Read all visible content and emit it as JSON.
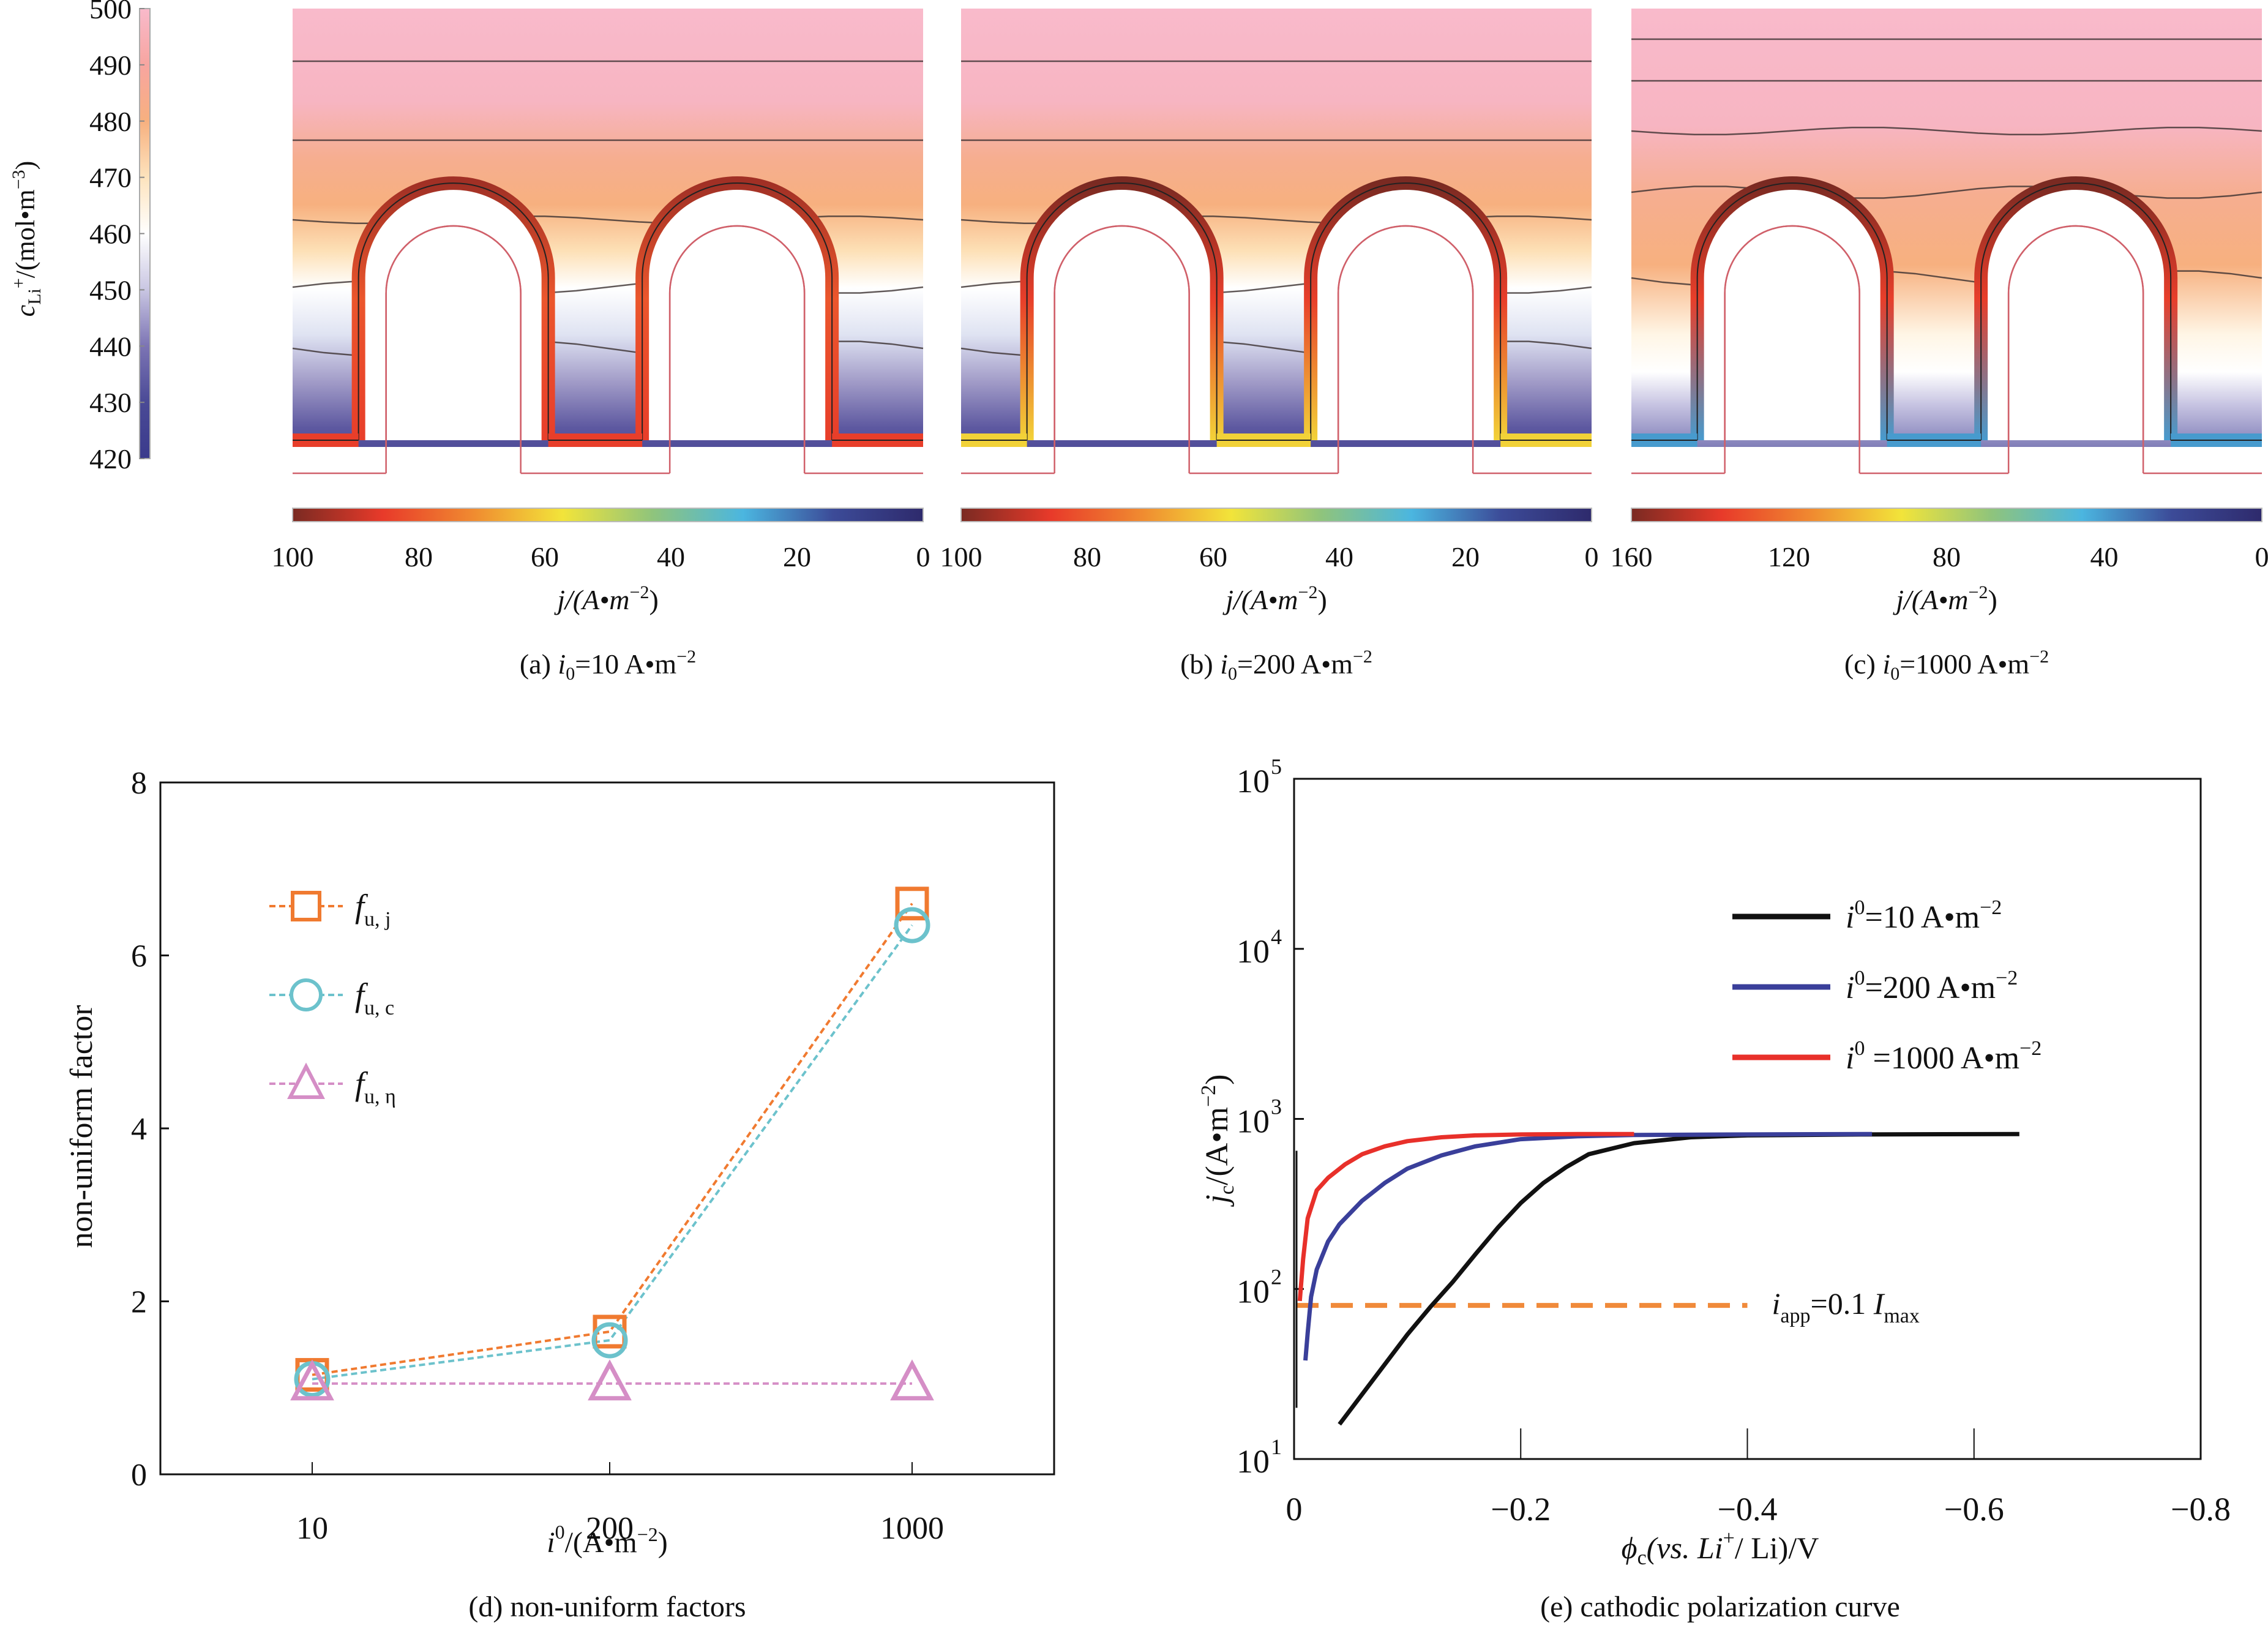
{
  "concentration_colorbar": {
    "label_main": "c",
    "label_sub": "Li",
    "label_sup": "+",
    "label_unit": "/(mol•m",
    "label_unit_exp": "−3",
    "label_unit_close": ")",
    "ticks": [
      "420",
      "430",
      "440",
      "450",
      "460",
      "470",
      "480",
      "490",
      "500"
    ],
    "range": [
      420,
      500
    ],
    "colors": [
      "#3a3a8c",
      "#4a4a96",
      "#7c74b4",
      "#c9c6e2",
      "#ffffff",
      "#fde3bd",
      "#f7b07f",
      "#f7a5a0",
      "#f9bacb"
    ]
  },
  "current_colormap": [
    "#7a2a22",
    "#e83a2a",
    "#f08a30",
    "#f2e43a",
    "#8fc47c",
    "#4bb6e0",
    "#3c4b98",
    "#2e2a6c"
  ],
  "contour_panels": [
    {
      "id": "a",
      "caption_prefix": "(a)",
      "caption_var": "i",
      "caption_sub": "0",
      "caption_value": "=10 A•m",
      "caption_exp": "−2",
      "colorbar_ticks": [
        "100",
        "80",
        "60",
        "40",
        "20",
        "0"
      ],
      "colorbar_range": [
        100,
        0
      ],
      "colorbar_label": "j/(A•m",
      "colorbar_label_exp": "−2",
      "colorbar_label_close": ")",
      "arch_top_current": 95,
      "trench_bottom_current": 85
    },
    {
      "id": "b",
      "caption_prefix": "(b)",
      "caption_var": "i",
      "caption_sub": "0",
      "caption_value": "=200 A•m",
      "caption_exp": "−2",
      "colorbar_ticks": [
        "100",
        "80",
        "60",
        "40",
        "20",
        "0"
      ],
      "colorbar_range": [
        100,
        0
      ],
      "colorbar_label": "j/(A•m",
      "colorbar_label_exp": "−2",
      "colorbar_label_close": ")",
      "arch_top_current": 100,
      "trench_bottom_current": 60
    },
    {
      "id": "c",
      "caption_prefix": "(c)",
      "caption_var": "i",
      "caption_sub": "0",
      "caption_value": "=1000 A•m",
      "caption_exp": "−2",
      "colorbar_ticks": [
        "160",
        "120",
        "80",
        "40",
        "0"
      ],
      "colorbar_range": [
        160,
        0
      ],
      "colorbar_label": "j/(A•m",
      "colorbar_label_exp": "−2",
      "colorbar_label_close": ")",
      "arch_top_current": 160,
      "trench_bottom_current": 40
    }
  ],
  "chart_data": [
    {
      "type": "line",
      "id": "d",
      "title": "(d) non-uniform factors",
      "xlabel": "i⁰/(A•m⁻²)",
      "xlabel_var": "i",
      "xlabel_sup": "0",
      "xlabel_unit": "/(A•m",
      "xlabel_exp": "−2",
      "xlabel_close": ")",
      "ylabel": "non-uniform factor",
      "categories": [
        "10",
        "200",
        "1000"
      ],
      "ylim": [
        0,
        8
      ],
      "yticks": [
        "0",
        "2",
        "4",
        "6",
        "8"
      ],
      "legend_position": "upper-left",
      "series": [
        {
          "name": "f_u,j",
          "label_f": "f",
          "label_sub": "u, j",
          "marker": "square",
          "color": "#f07a30",
          "values": [
            1.15,
            1.65,
            6.6
          ]
        },
        {
          "name": "f_u,c",
          "label_f": "f",
          "label_sub": "u, c",
          "marker": "circle",
          "color": "#6cc2cc",
          "values": [
            1.1,
            1.55,
            6.35
          ]
        },
        {
          "name": "f_u,η",
          "label_f": "f",
          "label_sub": "u, η",
          "marker": "triangle",
          "color": "#d58ec6",
          "values": [
            1.05,
            1.05,
            1.05
          ]
        }
      ]
    },
    {
      "type": "line",
      "id": "e",
      "title": "(e) cathodic polarization curve",
      "xlabel": "ϕc(vs. Li⁺/Li)/V",
      "xlabel_phi": "ϕ",
      "xlabel_sub": "c",
      "xlabel_rest": "(vs. Li",
      "xlabel_sup": "+",
      "xlabel_end": "/ Li)/V",
      "ylabel": "j_c/(A•m⁻²)",
      "ylabel_j": "j",
      "ylabel_sub": "c",
      "ylabel_unit": "/(A•m",
      "ylabel_exp": "−2",
      "ylabel_close": ")",
      "xlim": [
        0,
        -0.8
      ],
      "xticks": [
        "0",
        "−0.2",
        "−0.4",
        "−0.6",
        "−0.8"
      ],
      "xtick_values": [
        0,
        -0.2,
        -0.4,
        -0.6,
        -0.8
      ],
      "yscale": "log",
      "ylim": [
        10,
        100000
      ],
      "yticks_base": "10",
      "yticks_exp": [
        "1",
        "2",
        "3",
        "4",
        "5"
      ],
      "legend_position": "upper-right",
      "series": [
        {
          "name": "i0=10 A•m⁻²",
          "label_var": "i",
          "label_sup": "0",
          "label_value": "=10 A•m",
          "label_exp": "−2",
          "color": "#111111",
          "x": [
            -0.04,
            -0.06,
            -0.08,
            -0.1,
            -0.12,
            -0.14,
            -0.16,
            -0.18,
            -0.2,
            -0.22,
            -0.24,
            -0.26,
            -0.3,
            -0.35,
            -0.4,
            -0.5,
            -0.64
          ],
          "y": [
            16,
            24,
            36,
            54,
            78,
            110,
            160,
            230,
            320,
            420,
            520,
            620,
            720,
            780,
            800,
            810,
            815
          ]
        },
        {
          "name": "i0=200 A•m⁻²",
          "label_var": "i",
          "label_sup": "0",
          "label_value": "=200 A•m",
          "label_exp": "−2",
          "color": "#3a3f9a",
          "x": [
            -0.01,
            -0.012,
            -0.015,
            -0.02,
            -0.03,
            -0.04,
            -0.06,
            -0.08,
            -0.1,
            -0.13,
            -0.16,
            -0.2,
            -0.25,
            -0.3,
            -0.4,
            -0.51
          ],
          "y": [
            38,
            55,
            90,
            130,
            190,
            240,
            330,
            420,
            510,
            610,
            690,
            760,
            790,
            805,
            810,
            815
          ]
        },
        {
          "name": "i0=1000 A•m⁻²",
          "label_var": "i",
          "label_sup": "0",
          "label_value": " =1000 A•m",
          "label_exp": "−2",
          "color": "#e8302a",
          "x": [
            -0.005,
            -0.008,
            -0.012,
            -0.02,
            -0.03,
            -0.045,
            -0.06,
            -0.08,
            -0.1,
            -0.13,
            -0.16,
            -0.2,
            -0.25,
            -0.3
          ],
          "y": [
            85,
            150,
            260,
            380,
            450,
            540,
            620,
            690,
            740,
            780,
            800,
            810,
            815,
            815
          ]
        }
      ],
      "reference_line": {
        "label_i": "i",
        "label_sub": "app",
        "label_mid": "=0.1 ",
        "label_I": "I",
        "label_I_sub": "max",
        "y": 80,
        "x_end": -0.4,
        "color": "#f08a3a"
      }
    }
  ]
}
